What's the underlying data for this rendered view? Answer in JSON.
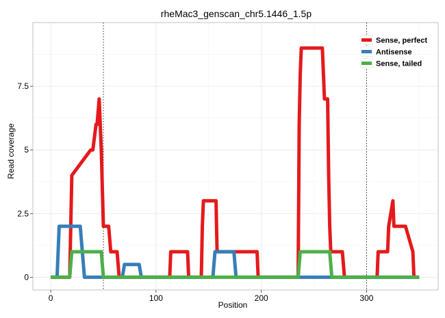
{
  "chart_data": {
    "type": "line",
    "title": "rheMac3_genscan_chr5.1446_1.5p",
    "xlabel": "Position",
    "ylabel": "Read coverage",
    "xlim": [
      -17,
      368
    ],
    "ylim": [
      -0.5,
      10.0
    ],
    "x_ticks": [
      0,
      100,
      200,
      300
    ],
    "x_tick_labels": [
      "0",
      "100",
      "200",
      "300"
    ],
    "y_ticks": [
      0,
      2.5,
      5,
      7.5
    ],
    "y_tick_labels": [
      "0",
      "2.5",
      "5",
      "7.5"
    ],
    "grid": true,
    "legend_position": "top-right",
    "vlines": [
      50,
      300
    ],
    "series": [
      {
        "name": "Sense, perfect",
        "color": "#e41a1c",
        "x": [
          0,
          18,
          19,
          20,
          38,
          40,
          43,
          44,
          46,
          48,
          50,
          55,
          57,
          63,
          65,
          113,
          114,
          130,
          131,
          143,
          144,
          145,
          157,
          158,
          172,
          173,
          196,
          197,
          235,
          236,
          237,
          238,
          240,
          256,
          258,
          260,
          263,
          264,
          265,
          266,
          277,
          279,
          310,
          311,
          320,
          321,
          325,
          326,
          327,
          329,
          337,
          344,
          345,
          350
        ],
        "y": [
          0,
          0,
          2,
          4,
          5,
          5,
          6,
          6,
          7,
          5,
          2,
          2,
          1,
          1,
          0,
          0,
          1,
          1,
          0,
          0,
          2,
          3,
          3,
          1,
          1,
          1,
          1,
          0,
          0,
          6,
          8,
          9,
          9,
          9,
          9,
          7,
          7,
          4,
          2,
          1,
          1,
          0,
          0,
          1,
          1,
          2,
          3,
          2,
          2,
          2,
          2,
          1,
          0,
          0
        ]
      },
      {
        "name": "Antisense",
        "color": "#377eb8",
        "x": [
          0,
          6,
          8,
          28,
          32,
          68,
          70,
          84,
          86,
          154,
          156,
          174,
          176,
          350
        ],
        "y": [
          0,
          0,
          2,
          2,
          0,
          0,
          0.5,
          0.5,
          0,
          0,
          1,
          1,
          0,
          0
        ],
        "draw_order": 1
      },
      {
        "name": "Sense, tailed",
        "color": "#4daf4a",
        "x": [
          0,
          18,
          20,
          48,
          50,
          235,
          237,
          265,
          267,
          350
        ],
        "y": [
          0,
          0,
          1,
          1,
          0,
          0,
          1,
          1,
          0,
          0
        ],
        "draw_order": 2
      }
    ]
  }
}
